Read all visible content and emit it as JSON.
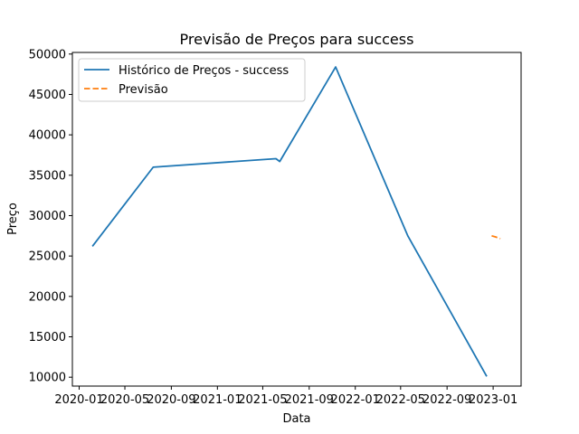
{
  "chart_data": {
    "type": "line",
    "title": "Previsão de Preços para success",
    "xlabel": "Data",
    "ylabel": "Preço",
    "x_type": "date",
    "xlim": [
      "2019-12-14",
      "2023-03-16"
    ],
    "ylim": [
      8900,
      50200
    ],
    "x_ticks": [
      "2020-01-01",
      "2020-05-01",
      "2020-09-01",
      "2021-01-01",
      "2021-05-01",
      "2021-09-01",
      "2022-01-01",
      "2022-05-01",
      "2022-09-01",
      "2023-01-01"
    ],
    "x_tick_labels": [
      "2020-01",
      "2020-05",
      "2020-09",
      "2021-01",
      "2021-05",
      "2021-09",
      "2022-01",
      "2022-05",
      "2022-09",
      "2023-01"
    ],
    "y_ticks": [
      10000,
      15000,
      20000,
      25000,
      30000,
      35000,
      40000,
      45000,
      50000
    ],
    "y_tick_labels": [
      "10000",
      "15000",
      "20000",
      "25000",
      "30000",
      "35000",
      "40000",
      "45000",
      "50000"
    ],
    "grid": false,
    "legend_position": "top-left",
    "series": [
      {
        "name": "Histórico de Preços - success",
        "color": "#1f77b4",
        "style": "solid",
        "points": [
          {
            "x": "2020-02-05",
            "y": 26200
          },
          {
            "x": "2020-07-15",
            "y": 36000
          },
          {
            "x": "2021-06-05",
            "y": 37050
          },
          {
            "x": "2021-06-15",
            "y": 36700
          },
          {
            "x": "2021-11-10",
            "y": 48400
          },
          {
            "x": "2022-05-20",
            "y": 27500
          },
          {
            "x": "2022-12-15",
            "y": 10100
          }
        ]
      },
      {
        "name": "Previsão",
        "color": "#ff7f0e",
        "style": "dashed",
        "points": [
          {
            "x": "2022-12-28",
            "y": 27500
          },
          {
            "x": "2023-01-08",
            "y": 27350
          },
          {
            "x": "2023-01-20",
            "y": 27150
          }
        ]
      }
    ]
  }
}
